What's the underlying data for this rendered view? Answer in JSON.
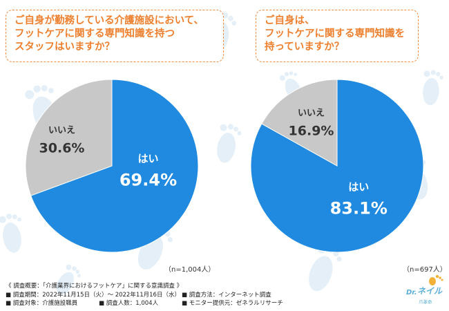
{
  "colors": {
    "yes": "#1f8ae0",
    "no": "#c8c8c8",
    "accent": "#ee7f2d",
    "footprint": "#e4eff8"
  },
  "questions": [
    {
      "lines": [
        "ご自身が勤務している介護施設において、",
        "フットケアに関する専門知識を持つ",
        "スタッフはいますか？"
      ]
    },
    {
      "lines": [
        "ご自身は、",
        "フットケアに関する専門知識を",
        "持っていますか？"
      ]
    }
  ],
  "chart_data": [
    {
      "type": "pie",
      "categories": [
        "はい",
        "いいえ"
      ],
      "values": [
        69.4,
        30.6
      ],
      "value_labels": [
        "69.4%",
        "30.6%"
      ],
      "note": "（n=1,004人）"
    },
    {
      "type": "pie",
      "categories": [
        "はい",
        "いいえ"
      ],
      "values": [
        83.1,
        16.9
      ],
      "value_labels": [
        "83.1%",
        "16.9%"
      ],
      "note": "（n=697人）"
    }
  ],
  "footer": {
    "line1": "《 調査概要：「介護業界におけるフットケア」に関する意識調査 》",
    "period": "■ 調査期間：2022年11月15日（火）～ 2022年11月16日（水）",
    "method": "■ 調査方法：インターネット調査",
    "target": "■ 調査対象：介護施設職員",
    "count": "■ 調査人数：1,004人",
    "monitor": "■ モニター提供元：ゼネラルリサーチ"
  },
  "logo": {
    "dr": "Dr.",
    "name": "ネイル",
    "sub": "爪革命"
  }
}
